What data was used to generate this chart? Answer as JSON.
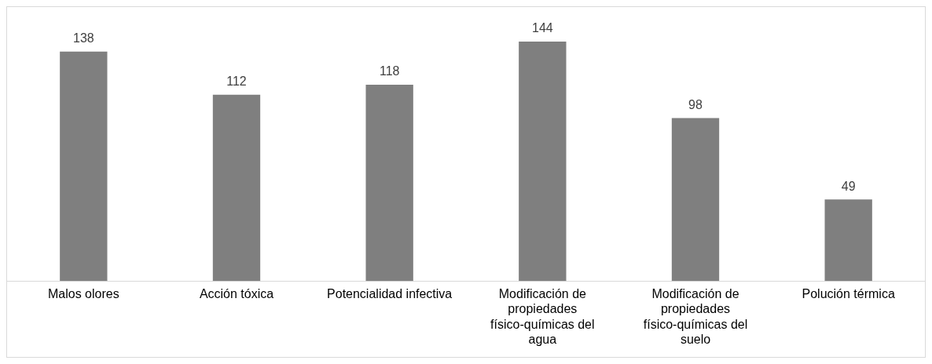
{
  "chart_data": {
    "type": "bar",
    "categories": [
      "Malos olores",
      "Acción tóxica",
      "Potencialidad infectiva",
      "Modificación de propiedades físico-químicas del agua",
      "Modificación de propiedades físico-químicas del suelo",
      "Polución térmica"
    ],
    "values": [
      138,
      112,
      118,
      144,
      98,
      49
    ],
    "color": "#7f7f7f",
    "data_labels": true,
    "grid": false,
    "legend": false
  }
}
